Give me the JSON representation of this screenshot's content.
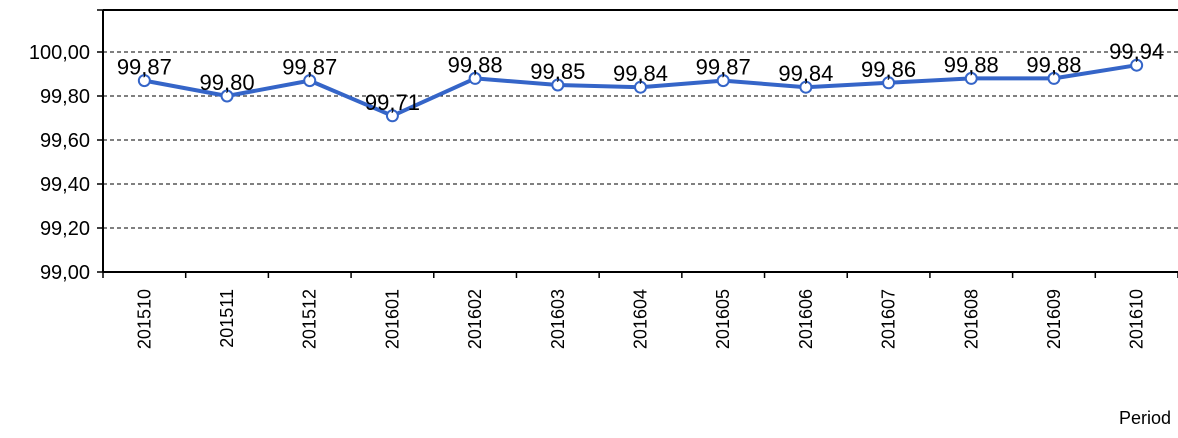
{
  "chart_data": {
    "type": "line",
    "title": "",
    "xlabel": "Period",
    "ylabel": "",
    "categories": [
      "201510",
      "201511",
      "201512",
      "201601",
      "201602",
      "201603",
      "201604",
      "201605",
      "201606",
      "201607",
      "201608",
      "201609",
      "201610"
    ],
    "series": [
      {
        "values": [
          99.87,
          99.8,
          99.87,
          99.71,
          99.88,
          99.85,
          99.84,
          99.87,
          99.84,
          99.86,
          99.88,
          99.88,
          99.94
        ],
        "labels": [
          "99,87",
          "99,80",
          "99,87",
          "99,71",
          "99,88",
          "99,85",
          "99,84",
          "99,87",
          "99,84",
          "99,86",
          "99,88",
          "99,88",
          "99,94"
        ],
        "color": "#3565c8"
      }
    ],
    "ylim": [
      99.0,
      100.1
    ],
    "yticks": [
      99.0,
      99.2,
      99.4,
      99.6,
      99.8,
      100.0
    ],
    "ytick_labels": [
      "99,00",
      "99,20",
      "99,40",
      "99,60",
      "99,80",
      "100,00"
    ],
    "grid": true,
    "legend": "none"
  }
}
